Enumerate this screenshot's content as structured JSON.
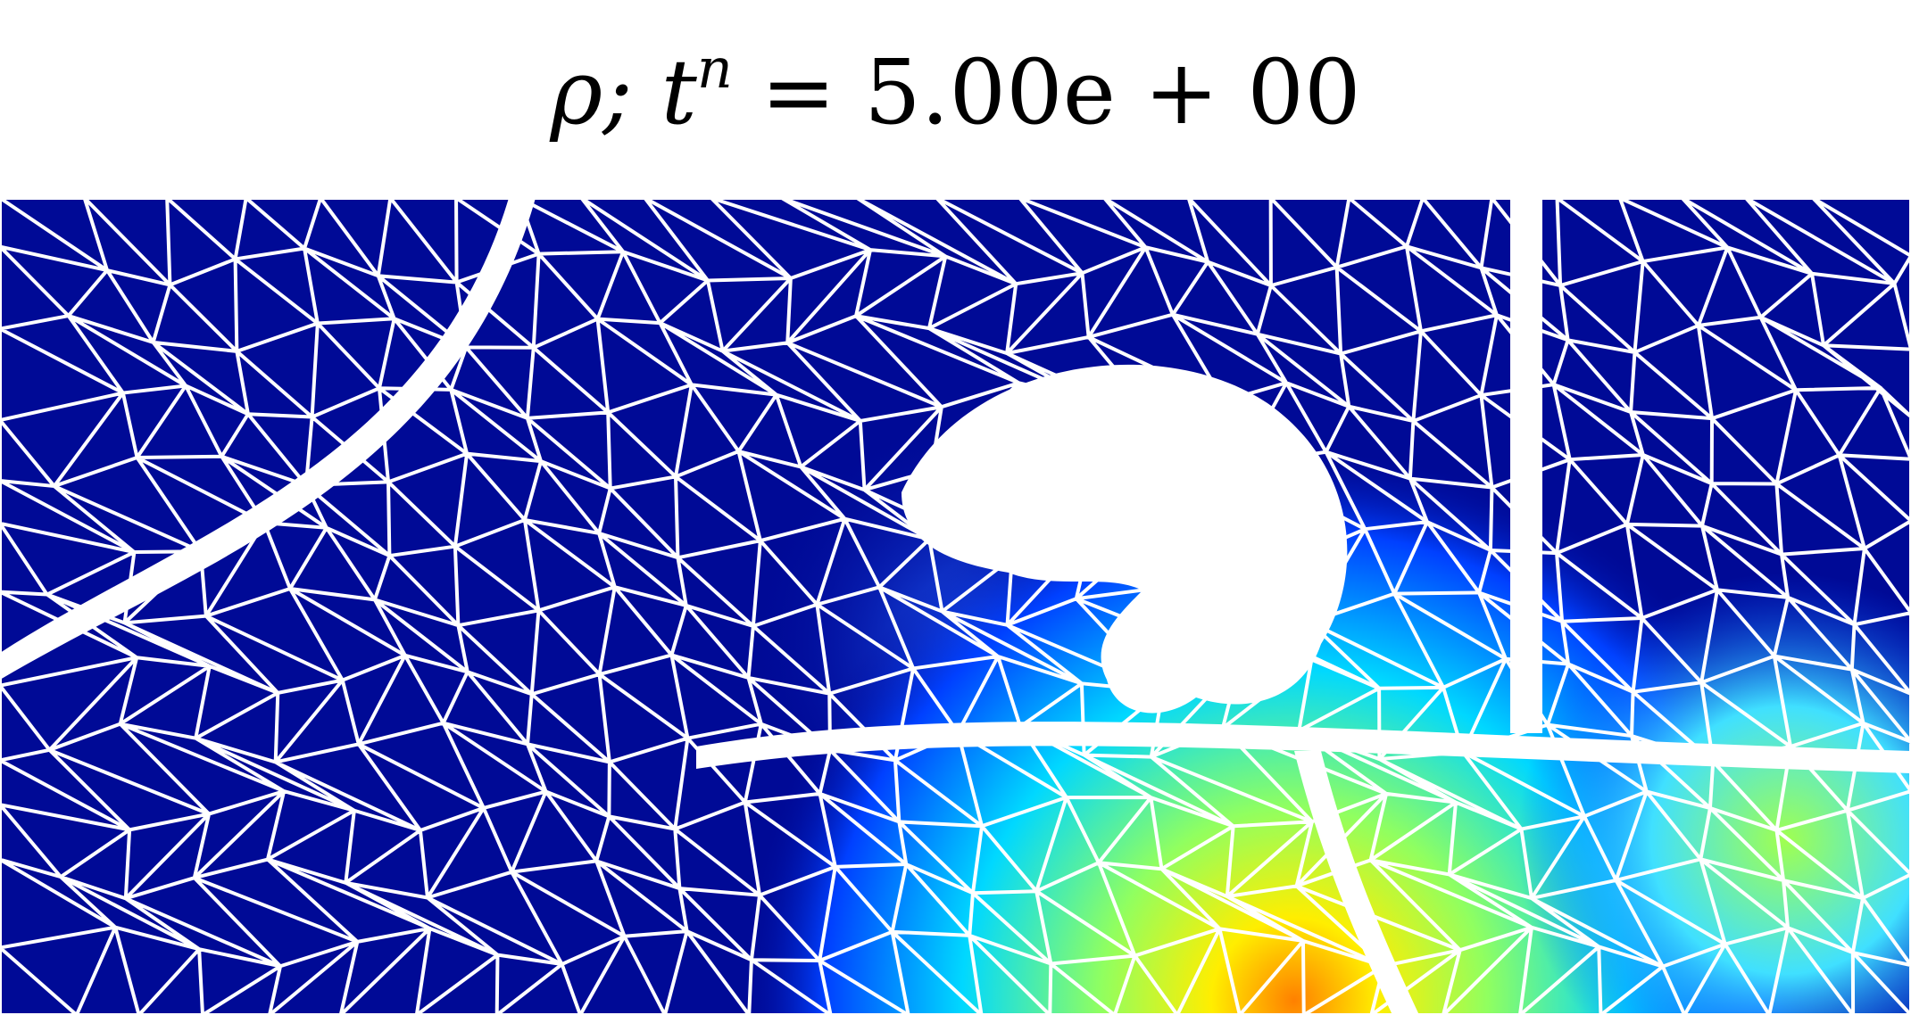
{
  "title": {
    "base": "ρ; t",
    "superscript": "n",
    "rest": " = 5.00e + 00"
  }
}
